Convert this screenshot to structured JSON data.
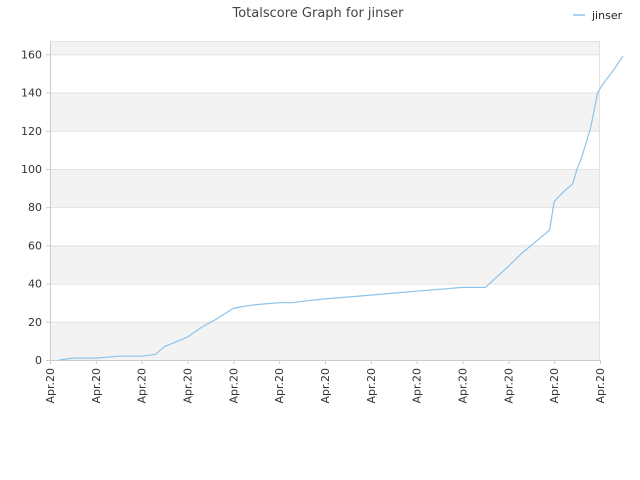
{
  "chart_data": {
    "type": "line",
    "title": "Totalscore Graph for jinser",
    "xlabel": "",
    "ylabel": "",
    "ylim": [
      0,
      167
    ],
    "yticks": [
      0,
      20,
      40,
      60,
      80,
      100,
      120,
      140,
      160
    ],
    "xtick_labels": [
      "Apr.20",
      "Apr.20",
      "Apr.20",
      "Apr.20",
      "Apr.20",
      "Apr.20",
      "Apr.20",
      "Apr.20",
      "Apr.20",
      "Apr.20",
      "Apr.20",
      "Apr.20",
      "Apr.20"
    ],
    "grid": "horizontal bands",
    "legend": "top-right",
    "colors": {
      "series": "#8cc4ec",
      "band": "#f3f3f3",
      "grid": "#e2e2e2",
      "axis": "#cccccc"
    },
    "series": [
      {
        "name": "jinser",
        "x": [
          0.2,
          0.5,
          1.0,
          1.5,
          2.0,
          2.3,
          2.5,
          3.0,
          3.3,
          3.6,
          4.0,
          4.2,
          4.5,
          5.0,
          5.3,
          5.6,
          6.0,
          6.5,
          7.0,
          7.5,
          8.0,
          8.5,
          9.0,
          9.5,
          10.0,
          10.3,
          10.6,
          10.9,
          11.0,
          11.2,
          11.4,
          11.5,
          11.6,
          11.8,
          11.95,
          12.05,
          12.3,
          12.5
        ],
        "y": [
          0,
          1,
          1,
          2,
          2,
          3,
          7,
          12,
          17,
          21,
          27,
          28,
          29,
          30,
          30,
          31,
          32,
          33,
          34,
          35,
          36,
          37,
          38,
          38,
          49,
          56,
          62,
          68,
          83,
          88,
          92,
          100,
          106,
          122,
          140,
          144,
          152,
          159
        ]
      }
    ]
  }
}
